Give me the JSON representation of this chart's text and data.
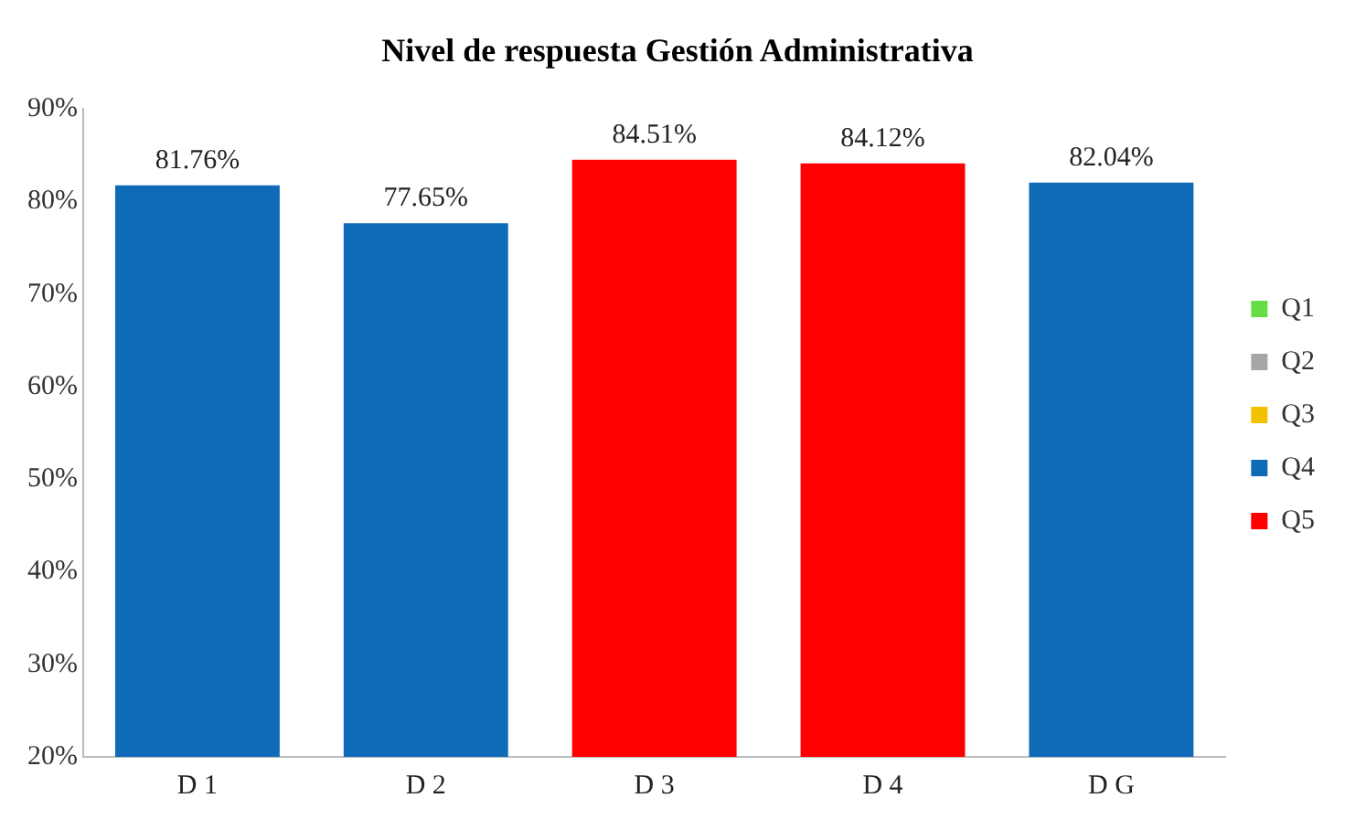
{
  "chart_data": {
    "type": "bar",
    "title": "Nivel de respuesta Gestión Administrativa",
    "categories": [
      "D 1",
      "D 2",
      "D 3",
      "D 4",
      "D G"
    ],
    "stacked": true,
    "series": [
      {
        "name": "Q1",
        "color": "#66dd44",
        "values": [
          null,
          null,
          null,
          null,
          null
        ]
      },
      {
        "name": "Q2",
        "color": "#a6a6a6",
        "values": [
          null,
          null,
          null,
          null,
          null
        ]
      },
      {
        "name": "Q3",
        "color": "#f2c200",
        "values": [
          null,
          null,
          null,
          null,
          null
        ]
      },
      {
        "name": "Q4",
        "color": "#0f6ab8",
        "values": [
          81.76,
          77.65,
          null,
          null,
          82.04
        ],
        "value_labels": [
          "81.76%",
          "77.65%",
          null,
          null,
          "82.04%"
        ]
      },
      {
        "name": "Q5",
        "color": "#ff0000",
        "values": [
          null,
          null,
          84.51,
          84.12,
          null
        ],
        "value_labels": [
          null,
          null,
          "84.51%",
          "84.12%",
          null
        ]
      }
    ],
    "ylim": [
      20,
      90
    ],
    "yticks": [
      {
        "value": 20,
        "label": "20%"
      },
      {
        "value": 30,
        "label": "30%"
      },
      {
        "value": 40,
        "label": "40%"
      },
      {
        "value": 50,
        "label": "50%"
      },
      {
        "value": 60,
        "label": "60%"
      },
      {
        "value": 70,
        "label": "70%"
      },
      {
        "value": 80,
        "label": "80%"
      },
      {
        "value": 90,
        "label": "90%"
      }
    ],
    "grid": false,
    "legend": "right"
  }
}
